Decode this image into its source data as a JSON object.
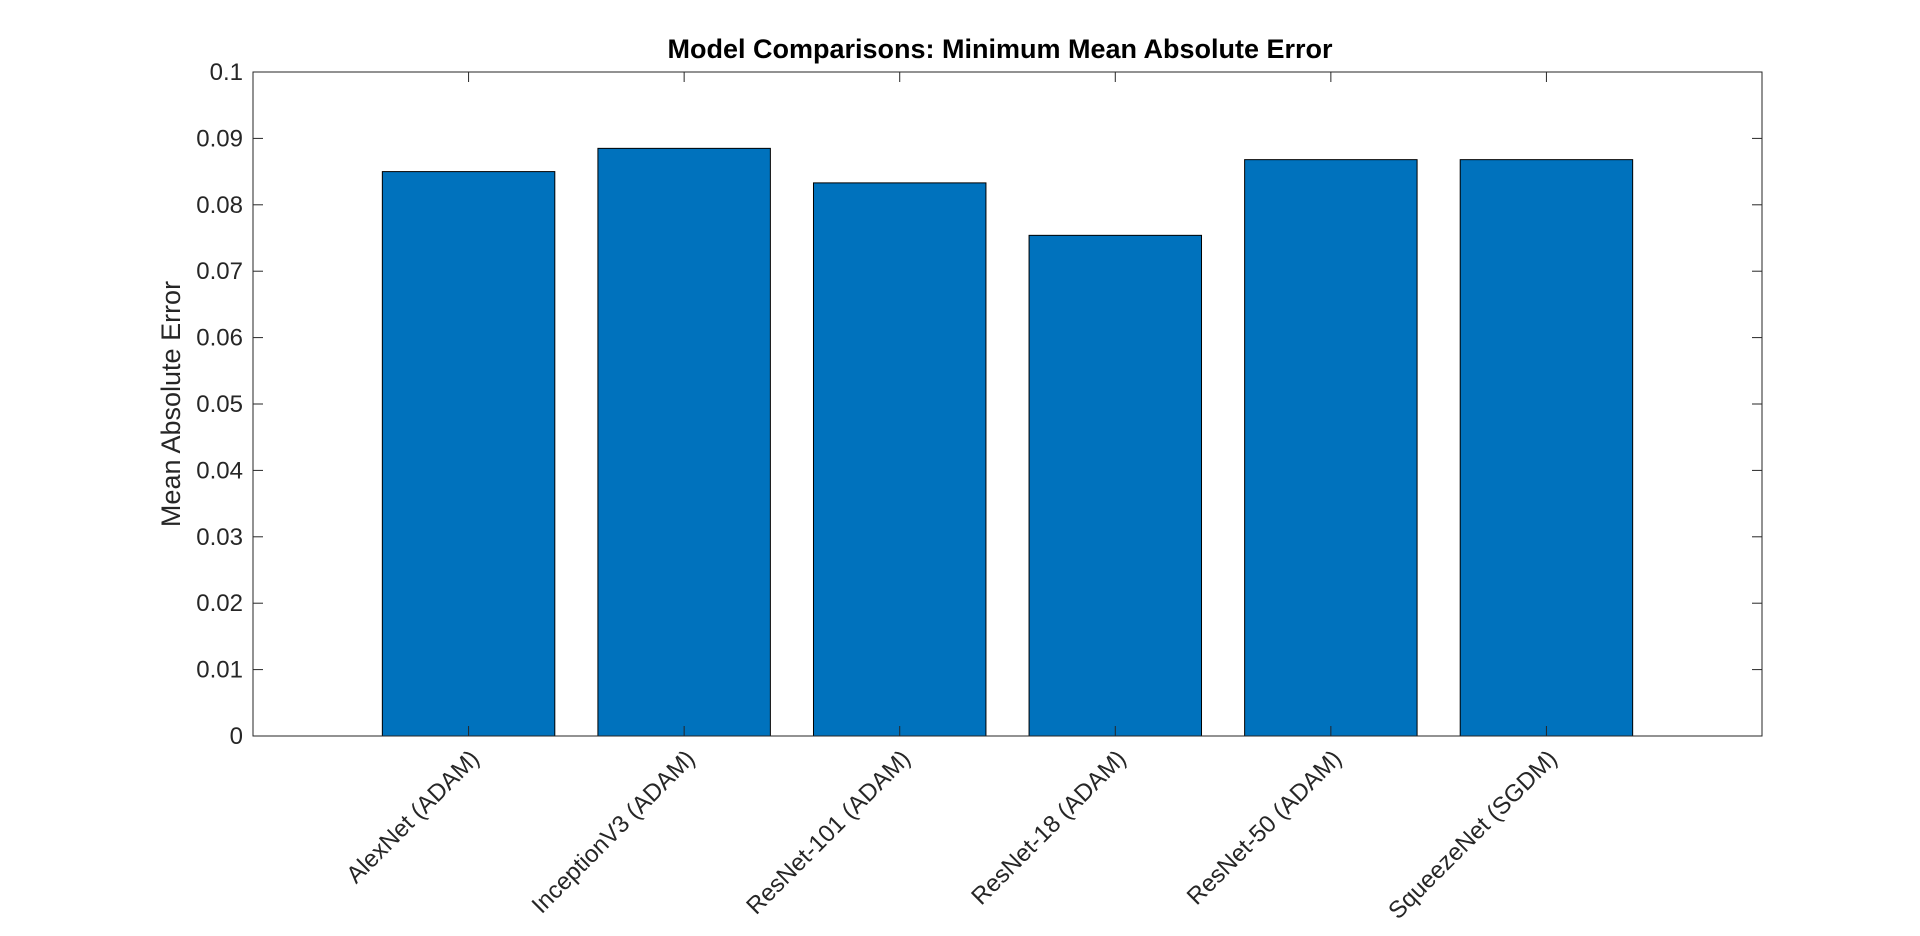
{
  "chart_data": {
    "type": "bar",
    "title": "Model Comparisons: Minimum Mean Absolute Error",
    "xlabel": "",
    "ylabel": "Mean Absolute Error",
    "categories": [
      "AlexNet (ADAM)",
      "InceptionV3 (ADAM)",
      "ResNet-101 (ADAM)",
      "ResNet-18 (ADAM)",
      "ResNet-50 (ADAM)",
      "SqueezeNet (SGDM)"
    ],
    "values": [
      0.085,
      0.0885,
      0.0833,
      0.0754,
      0.0868,
      0.0868
    ],
    "ylim": [
      0,
      0.1
    ],
    "yticks": [
      0,
      0.01,
      0.02,
      0.03,
      0.04,
      0.05,
      0.06,
      0.07,
      0.08,
      0.09,
      0.1
    ],
    "ytick_labels": [
      "0",
      "0.01",
      "0.02",
      "0.03",
      "0.04",
      "0.05",
      "0.06",
      "0.07",
      "0.08",
      "0.09",
      "0.1"
    ],
    "xlim": [
      0,
      7
    ],
    "x_tick_rotation_deg": 45,
    "grid": false,
    "bar_color": "#0072BD",
    "bar_edge_color": "#000000"
  }
}
